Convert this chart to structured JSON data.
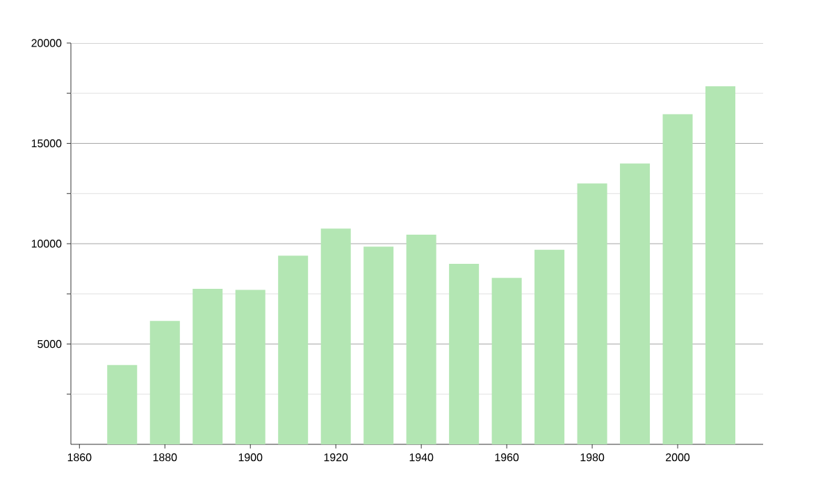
{
  "chart_data": {
    "type": "bar",
    "color": "#b3e6b3",
    "x": [
      1870,
      1880,
      1890,
      1900,
      1910,
      1920,
      1930,
      1940,
      1950,
      1960,
      1970,
      1980,
      1990,
      2000,
      2010
    ],
    "values": [
      3950,
      6150,
      7750,
      7700,
      9400,
      10750,
      9850,
      10450,
      9000,
      8300,
      9700,
      13000,
      14000,
      16450,
      17850
    ],
    "xlim": [
      1858,
      2020
    ],
    "xticks": [
      1860,
      1880,
      1900,
      1920,
      1940,
      1960,
      1980,
      2000
    ],
    "ylim": [
      0,
      20000
    ],
    "yticks": [
      {
        "value": 2500,
        "label": null
      },
      5000,
      {
        "value": 7500,
        "label": null
      },
      10000,
      {
        "value": 12500,
        "label": null
      },
      15000,
      {
        "value": 17500,
        "label": null
      },
      20000
    ],
    "grid": "y"
  }
}
